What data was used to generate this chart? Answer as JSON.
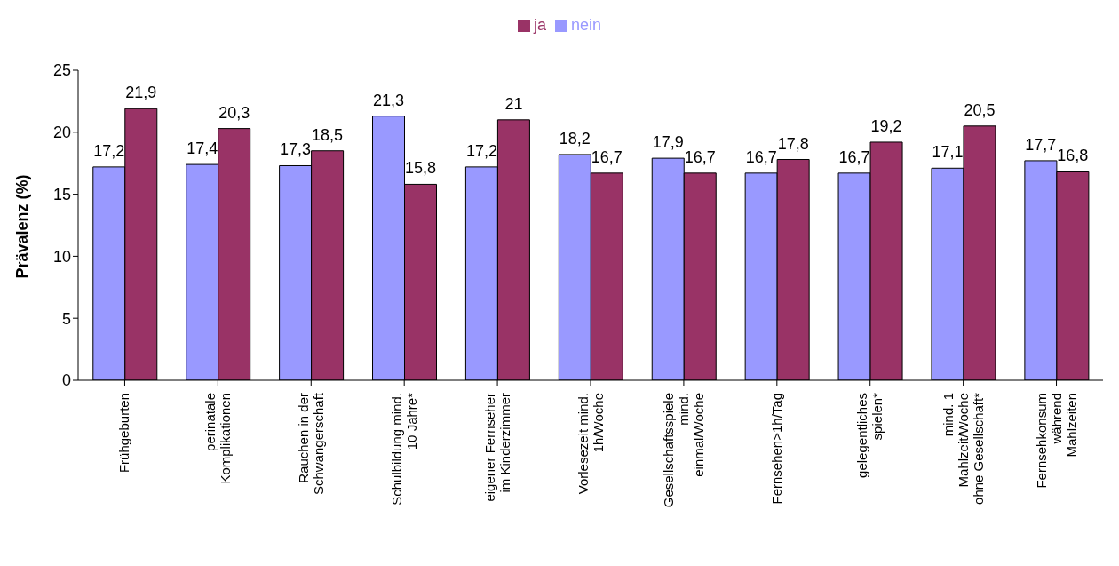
{
  "chart_data": {
    "type": "bar",
    "ylabel": "Prävalenz (%)",
    "categories": [
      "Frühgeburten",
      "perinatale\nKomplikationen",
      "Rauchen in der\nSchwangerschaft",
      "Schulbildung mind.\n10 Jahre*",
      "eigener Fernseher\nim Kinderzimmer",
      "Vorlesezeit mind.\n1h/Woche",
      "Gesellschaftsspiele\nmind.\neinmal/Woche",
      "Fernsehen>1h/Tag",
      "gelegentliches\nspielen*",
      "mind. 1\nMahlzeit/Woche\nohne Gesellschaft*",
      "Fernsehkonsum\nwährend\nMahlzeiten"
    ],
    "series": [
      {
        "name": "nein",
        "color": "#9999ff",
        "values": [
          17.2,
          17.4,
          17.3,
          21.3,
          17.2,
          18.2,
          17.9,
          16.7,
          16.7,
          17.1,
          17.7
        ],
        "value_labels": [
          "17,2",
          "17,4",
          "17,3",
          "21,3",
          "17,2",
          "18,2",
          "17,9",
          "16,7",
          "16,7",
          "17,1",
          "17,7"
        ]
      },
      {
        "name": "ja",
        "color": "#993366",
        "values": [
          21.9,
          20.3,
          18.5,
          15.8,
          21,
          16.7,
          16.7,
          17.8,
          19.2,
          20.5,
          16.8
        ],
        "value_labels": [
          "21,9",
          "20,3",
          "18,5",
          "15,8",
          "21",
          "16,7",
          "16,7",
          "17,8",
          "19,2",
          "20,5",
          "16,8"
        ]
      }
    ],
    "ylim": [
      0,
      25
    ],
    "yticks": [
      0,
      5,
      10,
      15,
      20,
      25
    ],
    "grid": false,
    "legend": "top"
  }
}
